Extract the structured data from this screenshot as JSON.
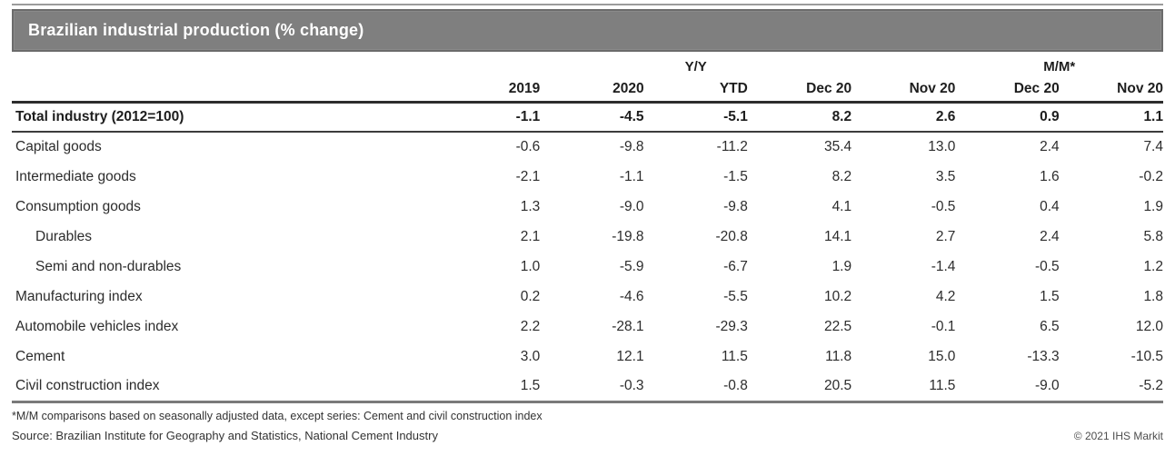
{
  "title": "Brazilian industrial production (% change)",
  "footnote": "*M/M comparisons based on seasonally adjusted data, except series: Cement and civil construction index",
  "source": "Source: Brazilian Institute for Geography and Statistics, National Cement Industry",
  "copyright": "© 2021 IHS Markit",
  "colors": {
    "title_bar": "#7f7f7f",
    "title_bar_border": "#6b6b6b",
    "title_text": "#ffffff",
    "table_text": "#2c2c2c",
    "header_rule": "#2d2d2d",
    "bottom_rule": "#7a7a7a"
  },
  "chart_data": {
    "type": "table",
    "title": "Brazilian industrial production (% change)",
    "column_groups": [
      {
        "label": "Y/Y",
        "span": 5
      },
      {
        "label": "M/M*",
        "span": 2
      }
    ],
    "columns": [
      "2019",
      "2020",
      "YTD",
      "Dec 20",
      "Nov 20",
      "Dec 20",
      "Nov 20"
    ],
    "rows": [
      {
        "label": "Total industry (2012=100)",
        "bold": true,
        "indent": false,
        "values": [
          "-1.1",
          "-4.5",
          "-5.1",
          "8.2",
          "2.6",
          "0.9",
          "1.1"
        ]
      },
      {
        "label": "Capital goods",
        "bold": false,
        "indent": false,
        "values": [
          "-0.6",
          "-9.8",
          "-11.2",
          "35.4",
          "13.0",
          "2.4",
          "7.4"
        ]
      },
      {
        "label": "Intermediate goods",
        "bold": false,
        "indent": false,
        "values": [
          "-2.1",
          "-1.1",
          "-1.5",
          "8.2",
          "3.5",
          "1.6",
          "-0.2"
        ]
      },
      {
        "label": "Consumption goods",
        "bold": false,
        "indent": false,
        "values": [
          "1.3",
          "-9.0",
          "-9.8",
          "4.1",
          "-0.5",
          "0.4",
          "1.9"
        ]
      },
      {
        "label": "Durables",
        "bold": false,
        "indent": true,
        "values": [
          "2.1",
          "-19.8",
          "-20.8",
          "14.1",
          "2.7",
          "2.4",
          "5.8"
        ]
      },
      {
        "label": "Semi and non-durables",
        "bold": false,
        "indent": true,
        "values": [
          "1.0",
          "-5.9",
          "-6.7",
          "1.9",
          "-1.4",
          "-0.5",
          "1.2"
        ]
      },
      {
        "label": "Manufacturing index",
        "bold": false,
        "indent": false,
        "values": [
          "0.2",
          "-4.6",
          "-5.5",
          "10.2",
          "4.2",
          "1.5",
          "1.8"
        ]
      },
      {
        "label": "Automobile vehicles index",
        "bold": false,
        "indent": false,
        "values": [
          "2.2",
          "-28.1",
          "-29.3",
          "22.5",
          "-0.1",
          "6.5",
          "12.0"
        ]
      },
      {
        "label": "Cement",
        "bold": false,
        "indent": false,
        "values": [
          "3.0",
          "12.1",
          "11.5",
          "11.8",
          "15.0",
          "-13.3",
          "-10.5"
        ]
      },
      {
        "label": "Civil construction index",
        "bold": false,
        "indent": false,
        "values": [
          "1.5",
          "-0.3",
          "-0.8",
          "20.5",
          "11.5",
          "-9.0",
          "-5.2"
        ]
      }
    ]
  }
}
